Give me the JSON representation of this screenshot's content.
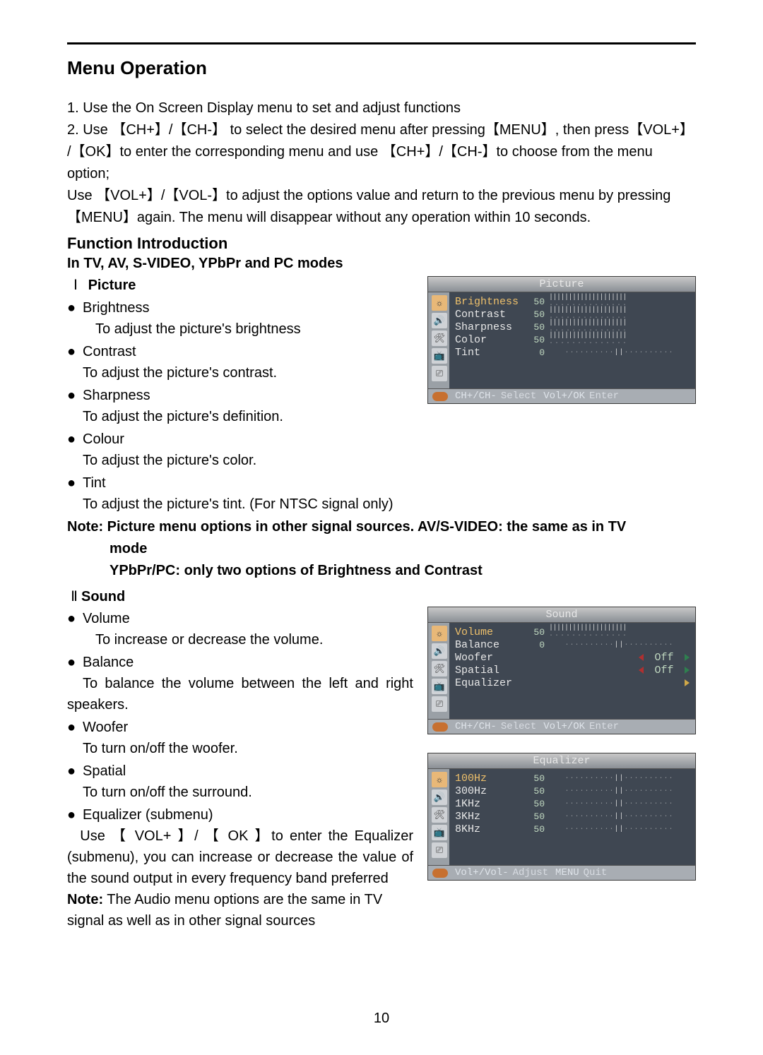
{
  "page_number": "10",
  "heading": "Menu Operation",
  "intro_lines": [
    "1. Use the On Screen Display menu to set and adjust functions",
    "2. Use 【CH+】/【CH-】 to select the desired menu after pressing【MENU】, then press【VOL+】",
    "/【OK】to enter the corresponding menu and use 【CH+】/【CH-】to choose from the menu option;",
    "Use 【VOL+】/【VOL-】to adjust the options value and return to the previous menu by pressing",
    "【MENU】again. The menu will disappear without any operation within 10 seconds."
  ],
  "func_intro_heading": "Function Introduction",
  "modes_heading": "In TV, AV, S-VIDEO, YPbPr and PC modes",
  "section_picture": {
    "numeral": "Ⅰ",
    "label": "Picture"
  },
  "picture_items": [
    {
      "label": "Brightness",
      "desc": "To adjust the picture's brightness"
    },
    {
      "label": "Contrast",
      "desc": "To adjust the picture's contrast."
    },
    {
      "label": " Sharpness",
      "desc": "To adjust the picture's definition."
    },
    {
      "label": "Colour",
      "desc": "To adjust the picture's color."
    },
    {
      "label": "Tint",
      "desc": "To adjust the picture's tint. (For NTSC signal only)"
    }
  ],
  "picture_note_line1": "Note: Picture menu options in other signal sources. AV/S-VIDEO: the same as in TV",
  "picture_note_line2": "mode",
  "picture_note_line3": "YPbPr/PC: only two options of Brightness and Contrast",
  "section_sound": {
    "numeral": "Ⅱ",
    "label": "Sound"
  },
  "sound_items": [
    {
      "label": "Volume",
      "desc": "To increase or decrease the volume."
    },
    {
      "label": "Balance",
      "desc": "To balance the volume between the left and right speakers.",
      "desc_inline": true
    },
    {
      "label": "Woofer",
      "desc": "To turn on/off the woofer."
    },
    {
      "label": "Spatial",
      "desc": "To turn on/off the surround."
    },
    {
      "label": "Equalizer (submenu)",
      "desc": ""
    }
  ],
  "equalizer_text": "  Use 【 VOL+ 】/ 【 OK 】to enter the Equalizer (submenu), you can increase or decrease the value of the sound output in every frequency band preferred",
  "sound_note_prefix": "Note:",
  "sound_note_rest": " The Audio menu options are the same in TV signal as well as in other signal sources",
  "osd_picture": {
    "title": "Picture",
    "rows": [
      {
        "name": "Brightness",
        "hi": true,
        "value": "50",
        "bar": "left"
      },
      {
        "name": "Contrast",
        "value": "50",
        "bar": "left"
      },
      {
        "name": "Sharpness",
        "value": "50",
        "bar": "left"
      },
      {
        "name": "Color",
        "value": "50",
        "bar": "left"
      },
      {
        "name": "Tint",
        "value": "0",
        "bar": "center"
      }
    ],
    "foot": [
      [
        "CH+/CH-",
        "Select"
      ],
      [
        "Vol+/OK",
        "Enter"
      ]
    ]
  },
  "osd_sound": {
    "title": "Sound",
    "rows": [
      {
        "name": "Volume",
        "hi": true,
        "value": "50",
        "bar": "left"
      },
      {
        "name": "Balance",
        "value": "0",
        "bar": "center"
      },
      {
        "name": "Woofer",
        "opt": "Off"
      },
      {
        "name": "Spatial",
        "opt": "Off"
      },
      {
        "name": "Equalizer",
        "arrow": true
      }
    ],
    "foot": [
      [
        "CH+/CH-",
        "Select"
      ],
      [
        "Vol+/OK",
        "Enter"
      ]
    ]
  },
  "osd_eq": {
    "title": "Equalizer",
    "rows": [
      {
        "name": "100Hz",
        "hi": true,
        "value": "50",
        "bar": "center"
      },
      {
        "name": "300Hz",
        "value": "50",
        "bar": "center"
      },
      {
        "name": "1KHz",
        "value": "50",
        "bar": "center"
      },
      {
        "name": "3KHz",
        "value": "50",
        "bar": "center"
      },
      {
        "name": "8KHz",
        "value": "50",
        "bar": "center"
      }
    ],
    "foot": [
      [
        "Vol+/Vol-",
        "Adjust"
      ],
      [
        "MENU",
        "Quit"
      ]
    ]
  },
  "icons": [
    "☼",
    "🔊",
    "🛠",
    "📺",
    "⎚"
  ]
}
